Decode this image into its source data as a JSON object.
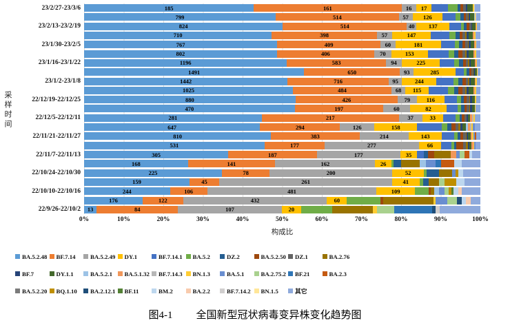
{
  "chart_data": {
    "type": "bar",
    "orientation": "horizontal",
    "stacked_percent": true,
    "xlabel": "构成比",
    "ylabel": "采样时间",
    "x_ticks": [
      "0%",
      "10%",
      "20%",
      "30%",
      "40%",
      "50%",
      "60%",
      "70%",
      "80%",
      "90%",
      "100%"
    ],
    "grid": "vertical-light-gray",
    "categories": [
      "23/2/27-23/3/6",
      "",
      "23/2/13-23/2/19",
      "",
      "23/1/30-23/2/5",
      "",
      "23/1/16-23/1/22",
      "",
      "23/1/2-23/1/8",
      "",
      "22/12/19-22/12/25",
      "",
      "22/12/5-22/12/11",
      "",
      "22/11/21-22/11/27",
      "",
      "22/11/7-22/11/13",
      "",
      "22/10/24-22/10/30",
      "",
      "22/10/10-22/10/16",
      "",
      "22/9/26-22/10/2"
    ],
    "series_names": [
      "BA.5.2.48",
      "BF.7.14",
      "BA.5.2.49",
      "DY.1",
      "BF.7.14.1",
      "BA.5.2",
      "DZ.2",
      "BA.5.2.50",
      "DZ.1",
      "BA.2.76",
      "BF.7",
      "DY.1.1",
      "BA.5.2.1",
      "BA.5.1.32",
      "BF.7.14.3",
      "BN.1.3",
      "BA.5.1",
      "BA.2.75.2",
      "BF.21",
      "BA.2.3",
      "BA.5.2.20",
      "BQ.1.10",
      "BA.2.12.1",
      "BF.11",
      "BM.2",
      "BA.2.2",
      "BF.7.14.2",
      "BN.1.5",
      "其它"
    ],
    "series_colors": [
      "#5B9BD5",
      "#ED7D31",
      "#A5A5A5",
      "#FFC000",
      "#4472C4",
      "#70AD47",
      "#255E91",
      "#9E480E",
      "#636363",
      "#997300",
      "#264478",
      "#43682B",
      "#9DC3E6",
      "#F1975A",
      "#B7B7B7",
      "#FFCD33",
      "#698ED0",
      "#A9D18E",
      "#2E75B6",
      "#C55A11",
      "#7B7B7B",
      "#BF8F00",
      "#1F4E79",
      "#538135",
      "#BDD7EE",
      "#F8CBAD",
      "#D0CECE",
      "#FFE699",
      "#8FAADC"
    ],
    "legend_rows": [
      [
        0,
        1,
        2,
        3,
        4,
        5,
        6,
        7,
        8,
        9
      ],
      [
        10,
        11,
        12,
        13,
        14,
        15,
        16,
        17,
        18,
        19
      ],
      [
        20,
        21,
        22,
        23,
        24,
        25,
        26,
        27,
        28
      ]
    ],
    "rows": [
      {
        "labeled_values": [
          185,
          161,
          16,
          17
        ],
        "tail_estimated": [
          [
            4,
            18
          ],
          [
            5,
            10
          ],
          [
            6,
            3
          ],
          [
            7,
            3
          ],
          [
            8,
            3
          ],
          [
            10,
            2
          ],
          [
            11,
            6
          ],
          [
            15,
            1
          ],
          [
            26,
            1
          ],
          [
            28,
            6
          ]
        ]
      },
      {
        "labeled_values": [
          799,
          514,
          57,
          126
        ],
        "tail_estimated": [
          [
            4,
            55
          ],
          [
            5,
            18
          ],
          [
            6,
            14
          ],
          [
            7,
            10
          ],
          [
            8,
            8
          ],
          [
            9,
            3
          ],
          [
            10,
            6
          ],
          [
            11,
            16
          ],
          [
            12,
            3
          ],
          [
            15,
            4
          ],
          [
            26,
            4
          ],
          [
            28,
            16
          ]
        ]
      },
      {
        "labeled_values": [
          824,
          514,
          40,
          137
        ],
        "tail_estimated": [
          [
            4,
            48
          ],
          [
            5,
            12
          ],
          [
            6,
            12
          ],
          [
            7,
            10
          ],
          [
            8,
            8
          ],
          [
            10,
            5
          ],
          [
            11,
            12
          ],
          [
            13,
            4
          ],
          [
            15,
            3
          ],
          [
            28,
            14
          ]
        ]
      },
      {
        "labeled_values": [
          710,
          398,
          57,
          147
        ],
        "tail_estimated": [
          [
            4,
            70
          ],
          [
            5,
            22
          ],
          [
            6,
            16
          ],
          [
            7,
            12
          ],
          [
            8,
            10
          ],
          [
            9,
            4
          ],
          [
            10,
            8
          ],
          [
            11,
            16
          ],
          [
            13,
            6
          ],
          [
            15,
            4
          ],
          [
            28,
            19
          ]
        ]
      },
      {
        "labeled_values": [
          767,
          409,
          60,
          181
        ],
        "tail_estimated": [
          [
            4,
            55
          ],
          [
            5,
            16
          ],
          [
            6,
            14
          ],
          [
            7,
            12
          ],
          [
            8,
            10
          ],
          [
            9,
            4
          ],
          [
            10,
            7
          ],
          [
            11,
            14
          ],
          [
            13,
            5
          ],
          [
            15,
            4
          ],
          [
            28,
            15
          ]
        ]
      },
      {
        "labeled_values": [
          802,
          406,
          70,
          153
        ],
        "tail_estimated": [
          [
            4,
            85
          ],
          [
            5,
            24
          ],
          [
            6,
            18
          ],
          [
            7,
            16
          ],
          [
            8,
            12
          ],
          [
            9,
            5
          ],
          [
            10,
            9
          ],
          [
            11,
            20
          ],
          [
            13,
            6
          ],
          [
            15,
            5
          ],
          [
            28,
            18
          ]
        ]
      },
      {
        "labeled_values": [
          1196,
          583,
          94,
          225
        ],
        "tail_estimated": [
          [
            4,
            85
          ],
          [
            5,
            28
          ],
          [
            6,
            22
          ],
          [
            7,
            18
          ],
          [
            8,
            14
          ],
          [
            9,
            6
          ],
          [
            10,
            10
          ],
          [
            11,
            22
          ],
          [
            13,
            7
          ],
          [
            15,
            6
          ],
          [
            28,
            20
          ]
        ]
      },
      {
        "labeled_values": [
          1491,
          650,
          93,
          285
        ],
        "tail_estimated": [
          [
            4,
            55
          ],
          [
            5,
            20
          ],
          [
            6,
            16
          ],
          [
            7,
            14
          ],
          [
            8,
            11
          ],
          [
            9,
            5
          ],
          [
            10,
            8
          ],
          [
            11,
            16
          ],
          [
            15,
            4
          ],
          [
            28,
            18
          ]
        ]
      },
      {
        "labeled_values": [
          1442,
          716,
          95,
          244
        ],
        "tail_estimated": [
          [
            4,
            120
          ],
          [
            5,
            35
          ],
          [
            6,
            28
          ],
          [
            7,
            24
          ],
          [
            8,
            18
          ],
          [
            9,
            8
          ],
          [
            10,
            12
          ],
          [
            11,
            26
          ],
          [
            13,
            8
          ],
          [
            15,
            7
          ],
          [
            28,
            25
          ]
        ]
      },
      {
        "labeled_values": [
          1025,
          484,
          68,
          115
        ],
        "tail_estimated": [
          [
            4,
            95
          ],
          [
            5,
            28
          ],
          [
            6,
            22
          ],
          [
            7,
            20
          ],
          [
            8,
            15
          ],
          [
            9,
            7
          ],
          [
            10,
            10
          ],
          [
            11,
            22
          ],
          [
            13,
            7
          ],
          [
            15,
            6
          ],
          [
            28,
            21
          ]
        ]
      },
      {
        "labeled_values": [
          880,
          426,
          79,
          116
        ],
        "tail_estimated": [
          [
            4,
            52
          ],
          [
            5,
            16
          ],
          [
            6,
            13
          ],
          [
            7,
            12
          ],
          [
            8,
            10
          ],
          [
            9,
            4
          ],
          [
            10,
            7
          ],
          [
            11,
            13
          ],
          [
            15,
            4
          ],
          [
            28,
            18
          ]
        ]
      },
      {
        "labeled_values": [
          470,
          197,
          60,
          82
        ],
        "tail_estimated": [
          [
            4,
            24
          ],
          [
            5,
            8
          ],
          [
            6,
            7
          ],
          [
            7,
            6
          ],
          [
            8,
            5
          ],
          [
            9,
            2
          ],
          [
            10,
            4
          ],
          [
            11,
            7
          ],
          [
            15,
            2
          ],
          [
            28,
            10
          ]
        ]
      },
      {
        "labeled_values": [
          281,
          217,
          37,
          33
        ],
        "tail_estimated": [
          [
            4,
            20
          ],
          [
            5,
            6
          ],
          [
            6,
            4
          ],
          [
            7,
            4
          ],
          [
            8,
            3
          ],
          [
            10,
            2
          ],
          [
            11,
            4
          ],
          [
            13,
            3
          ],
          [
            14,
            2
          ],
          [
            15,
            2
          ],
          [
            28,
            9
          ]
        ]
      },
      {
        "labeled_values": [
          647,
          294,
          126,
          158
        ],
        "tail_estimated": [
          [
            4,
            90
          ],
          [
            5,
            20
          ],
          [
            6,
            16
          ],
          [
            7,
            14
          ],
          [
            8,
            12
          ],
          [
            9,
            6
          ],
          [
            10,
            8
          ],
          [
            11,
            14
          ],
          [
            12,
            6
          ],
          [
            13,
            8
          ],
          [
            14,
            6
          ],
          [
            15,
            5
          ],
          [
            16,
            6
          ],
          [
            28,
            21
          ]
        ]
      },
      {
        "labeled_values": [
          810,
          383,
          214,
          143
        ],
        "tail_estimated": [
          [
            4,
            55
          ],
          [
            5,
            14
          ],
          [
            6,
            12
          ],
          [
            7,
            12
          ],
          [
            8,
            10
          ],
          [
            9,
            5
          ],
          [
            10,
            6
          ],
          [
            11,
            10
          ],
          [
            13,
            8
          ],
          [
            15,
            5
          ],
          [
            16,
            6
          ],
          [
            19,
            6
          ],
          [
            28,
            18
          ]
        ]
      },
      {
        "labeled_values": [
          531,
          177,
          277,
          66
        ],
        "tail_estimated": [
          [
            4,
            30
          ],
          [
            5,
            8
          ],
          [
            6,
            7
          ],
          [
            7,
            20
          ],
          [
            8,
            8
          ],
          [
            9,
            5
          ],
          [
            10,
            4
          ],
          [
            11,
            6
          ],
          [
            13,
            6
          ],
          [
            15,
            3
          ],
          [
            16,
            4
          ],
          [
            28,
            14
          ]
        ]
      },
      {
        "labeled_values": [
          305,
          187,
          177,
          35
        ],
        "tail_estimated": [
          [
            4,
            14
          ],
          [
            6,
            10
          ],
          [
            7,
            12
          ],
          [
            9,
            35
          ],
          [
            13,
            12
          ],
          [
            16,
            8
          ],
          [
            17,
            10
          ],
          [
            19,
            10
          ],
          [
            24,
            6
          ],
          [
            28,
            17
          ]
        ]
      },
      {
        "labeled_values": [
          168,
          141,
          162,
          26
        ],
        "tail_estimated": [
          [
            5,
            4
          ],
          [
            6,
            12
          ],
          [
            9,
            30
          ],
          [
            12,
            10
          ],
          [
            16,
            16
          ],
          [
            18,
            8
          ],
          [
            19,
            22
          ],
          [
            24,
            12
          ],
          [
            28,
            30
          ]
        ]
      },
      {
        "labeled_values": [
          225,
          78,
          200,
          52
        ],
        "tail_estimated": [
          [
            5,
            4
          ],
          [
            6,
            20
          ],
          [
            9,
            22
          ],
          [
            16,
            6
          ],
          [
            21,
            4
          ],
          [
            24,
            8
          ],
          [
            28,
            28
          ]
        ]
      },
      {
        "labeled_values": [
          159,
          45,
          261,
          41
        ],
        "tail_estimated": [
          [
            5,
            6
          ],
          [
            6,
            8
          ],
          [
            9,
            16
          ],
          [
            17,
            8
          ],
          [
            21,
            18
          ],
          [
            24,
            12
          ],
          [
            28,
            24
          ]
        ]
      },
      {
        "labeled_values": [
          244,
          106,
          481,
          109
        ],
        "tail_estimated": [
          [
            5,
            40
          ],
          [
            7,
            6
          ],
          [
            9,
            8
          ],
          [
            12,
            14
          ],
          [
            16,
            16
          ],
          [
            17,
            12
          ],
          [
            21,
            8
          ],
          [
            23,
            6
          ],
          [
            24,
            14
          ],
          [
            25,
            10
          ],
          [
            28,
            52
          ]
        ]
      },
      {
        "labeled_values": [
          176,
          122,
          432,
          60
        ],
        "tail_estimated": [
          [
            5,
            100
          ],
          [
            7,
            10
          ],
          [
            9,
            150
          ],
          [
            15,
            6
          ],
          [
            16,
            35
          ],
          [
            17,
            30
          ],
          [
            22,
            15
          ],
          [
            24,
            12
          ],
          [
            25,
            15
          ],
          [
            28,
            28
          ]
        ]
      },
      {
        "labeled_values": [
          13,
          84,
          107,
          20
        ],
        "tail_estimated": [
          [
            5,
            32
          ],
          [
            9,
            42
          ],
          [
            15,
            4
          ],
          [
            17,
            18
          ],
          [
            18,
            39
          ],
          [
            22,
            4
          ],
          [
            26,
            4
          ],
          [
            28,
            42
          ]
        ]
      }
    ]
  },
  "caption": {
    "label": "图4-1",
    "title": "全国新型冠状病毒变异株变化趋势图"
  }
}
